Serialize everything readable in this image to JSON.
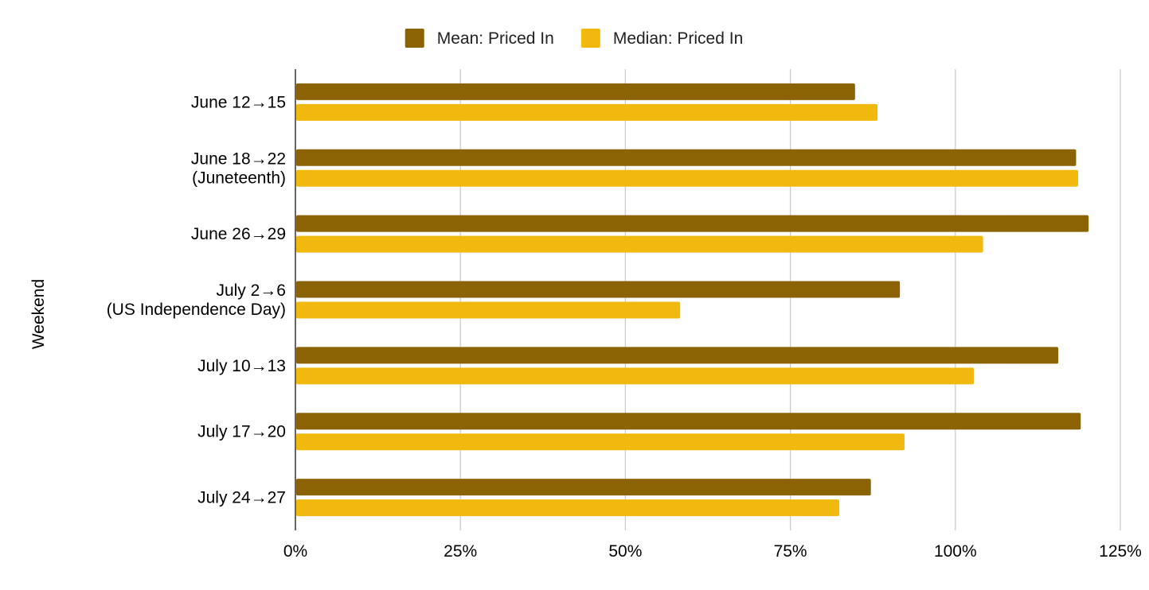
{
  "chart_data": {
    "type": "bar",
    "orientation": "horizontal",
    "title": "",
    "xlabel": "",
    "ylabel": "Weekend",
    "xlim": [
      0,
      125
    ],
    "x_ticks": [
      0,
      25,
      50,
      75,
      100,
      125
    ],
    "x_tick_labels": [
      "0%",
      "25%",
      "50%",
      "75%",
      "100%",
      "125%"
    ],
    "grid": "vertical",
    "legend_position": "top-center",
    "categories": [
      [
        "June 12→15"
      ],
      [
        "June 18→22",
        "(Juneteenth)"
      ],
      [
        "June 26→29"
      ],
      [
        "July 2→6",
        "(US Independence Day)"
      ],
      [
        "July 10→13"
      ],
      [
        "July 17→20"
      ],
      [
        "July 24→27"
      ]
    ],
    "series": [
      {
        "name": "Mean: Priced In",
        "color": "#8B6305",
        "values": [
          84.8,
          118.3,
          120.2,
          91.6,
          115.6,
          119.0,
          87.2
        ]
      },
      {
        "name": "Median: Priced In",
        "color": "#F1B80D",
        "values": [
          88.2,
          118.6,
          104.2,
          58.3,
          102.8,
          92.3,
          82.4
        ]
      }
    ]
  }
}
